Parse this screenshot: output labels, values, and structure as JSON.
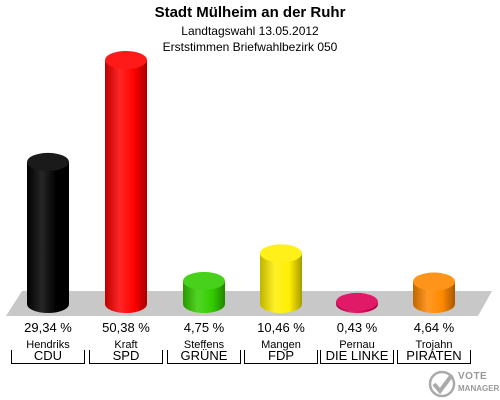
{
  "header": {
    "title": "Stadt Mülheim an der Ruhr",
    "subtitle_date": "Landtagswahl 13.05.2012",
    "subtitle_district": "Erststimmen Briefwahlbezirk 050"
  },
  "logo": {
    "line1": "VOTE",
    "line2": "MANAGER"
  },
  "chart_data": {
    "type": "bar",
    "title": "Stadt Mülheim an der Ruhr",
    "categories": [
      "CDU",
      "SPD",
      "GRÜNE",
      "FDP",
      "DIE LINKE",
      "PIRATEN"
    ],
    "candidates": [
      "Hendriks",
      "Kraft",
      "Steffens",
      "Mangen",
      "Pernau",
      "Trojahn"
    ],
    "values": [
      29.34,
      50.38,
      4.75,
      10.46,
      0.43,
      4.64
    ],
    "value_labels": [
      "29,34 %",
      "50,38 %",
      "4,75 %",
      "10,46 %",
      "0,43 %",
      "4,64 %"
    ],
    "colors": [
      "#000000",
      "#ff0000",
      "#33cc00",
      "#ffee00",
      "#dd0055",
      "#ff8800"
    ],
    "ylim": [
      0,
      55
    ],
    "grid": false,
    "legend": "none"
  }
}
